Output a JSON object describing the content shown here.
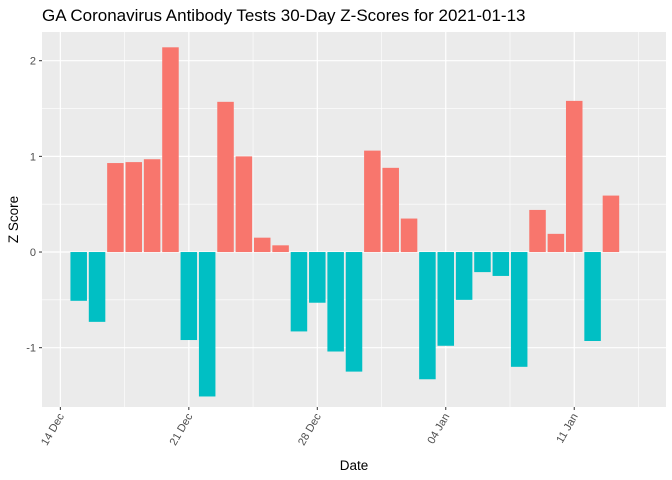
{
  "chart_data": {
    "type": "bar",
    "title": "GA Coronavirus Antibody Tests 30-Day Z-Scores for 2021-01-13",
    "xlabel": "Date",
    "ylabel": "Z Score",
    "ylim": [
      -1.62,
      2.3
    ],
    "yticks": [
      -1,
      0,
      1,
      2
    ],
    "xlim": [
      "2020-12-13",
      "2021-01-16"
    ],
    "xticks": [
      {
        "date": "2020-12-14",
        "label": "14 Dec"
      },
      {
        "date": "2020-12-21",
        "label": "21 Dec"
      },
      {
        "date": "2020-12-28",
        "label": "28 Dec"
      },
      {
        "date": "2021-01-04",
        "label": "04 Jan"
      },
      {
        "date": "2021-01-11",
        "label": "11 Jan"
      }
    ],
    "grid": true,
    "legend": "none",
    "colors": {
      "positive": "#F8766D",
      "negative": "#00BFC4",
      "panel": "#EBEBEB",
      "grid": "#FFFFFF"
    },
    "dates": [
      "2020-12-15",
      "2020-12-16",
      "2020-12-17",
      "2020-12-18",
      "2020-12-19",
      "2020-12-20",
      "2020-12-21",
      "2020-12-22",
      "2020-12-23",
      "2020-12-24",
      "2020-12-25",
      "2020-12-26",
      "2020-12-27",
      "2020-12-28",
      "2020-12-29",
      "2020-12-30",
      "2020-12-31",
      "2021-01-01",
      "2021-01-02",
      "2021-01-03",
      "2021-01-04",
      "2021-01-05",
      "2021-01-06",
      "2021-01-07",
      "2021-01-08",
      "2021-01-09",
      "2021-01-10",
      "2021-01-11",
      "2021-01-12",
      "2021-01-13"
    ],
    "values": [
      -0.51,
      -0.73,
      0.93,
      0.94,
      0.97,
      2.14,
      -0.92,
      -1.51,
      1.57,
      1.0,
      0.15,
      0.07,
      -0.83,
      -0.53,
      -1.04,
      -1.25,
      1.06,
      0.88,
      0.35,
      -1.33,
      -0.98,
      -0.5,
      -0.21,
      -0.25,
      -1.2,
      0.44,
      0.19,
      1.58,
      -0.93,
      0.59
    ]
  }
}
